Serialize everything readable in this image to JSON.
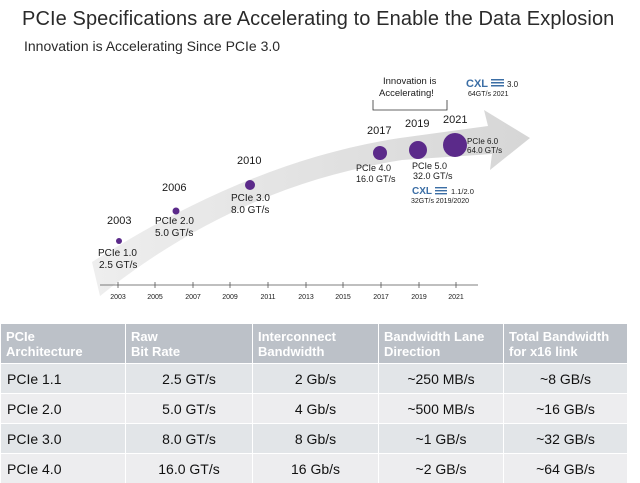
{
  "header": {
    "title": "PCIe Specifications are Accelerating to Enable the Data Explosion",
    "subtitle": "Innovation is Accelerating Since PCIe 3.0"
  },
  "timeline": {
    "milestones": [
      {
        "year": "2003",
        "spec": "PCIe 1.0",
        "rate": "2.5 GT/s"
      },
      {
        "year": "2006",
        "spec": "PCIe 2.0",
        "rate": "5.0 GT/s"
      },
      {
        "year": "2010",
        "spec": "PCIe 3.0",
        "rate": "8.0 GT/s"
      },
      {
        "year": "2017",
        "spec": "PCIe 4.0",
        "rate": "16.0 GT/s"
      },
      {
        "year": "2019",
        "spec": "PCIe 5.0",
        "rate": "32.0 GT/s"
      },
      {
        "year": "2021",
        "spec": "PCIe 6.0",
        "rate": "64.0 GT/s"
      }
    ],
    "callout_line1": "Innovation is",
    "callout_line2": "Accelerating!",
    "cxl_top": {
      "logo": "CXL",
      "version": "3.0",
      "detail": "64GT/s 2021"
    },
    "cxl_bottom": {
      "logo": "CXL",
      "version": "1.1/2.0",
      "detail": "32GT/s 2019/2020"
    },
    "axis_ticks": [
      "2003",
      "2005",
      "2007",
      "2009",
      "2011",
      "2013",
      "2015",
      "2017",
      "2019",
      "2021"
    ],
    "colors": {
      "arrow": "#dedede",
      "dot": "#5b2a8a",
      "axis": "#555555"
    }
  },
  "table": {
    "headers": [
      "PCIe\nArchitecture",
      "Raw\nBit Rate",
      "Interconnect\nBandwidth",
      "Bandwidth Lane\nDirection",
      "Total Bandwidth\nfor x16 link"
    ],
    "rows": [
      [
        "PCIe 1.1",
        "2.5 GT/s",
        "2 Gb/s",
        "~250 MB/s",
        "~8 GB/s"
      ],
      [
        "PCIe 2.0",
        "5.0 GT/s",
        "4 Gb/s",
        "~500 MB/s",
        "~16 GB/s"
      ],
      [
        "PCIe 3.0",
        "8.0 GT/s",
        "8 Gb/s",
        "~1 GB/s",
        "~32 GB/s"
      ],
      [
        "PCIe 4.0",
        "16.0 GT/s",
        "16 Gb/s",
        "~2 GB/s",
        "~64 GB/s"
      ]
    ],
    "colors": {
      "header_bg": "#bcc1c8",
      "row_bg": "#e2e5e8",
      "row_alt_bg": "#ededef"
    }
  }
}
